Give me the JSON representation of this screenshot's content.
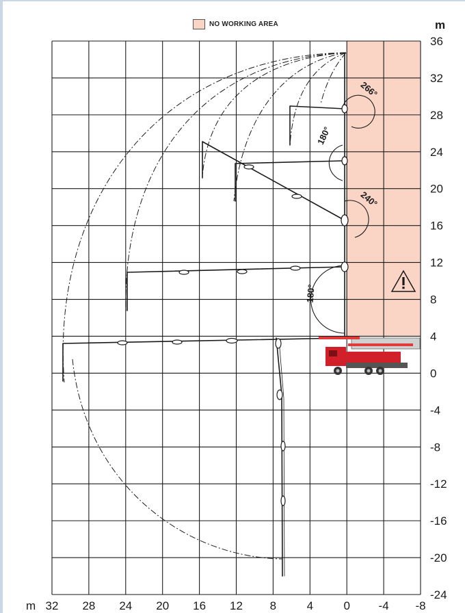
{
  "legend": {
    "label": "NO WORKING AREA",
    "color": "#fad5c6"
  },
  "axes": {
    "x_unit": "m",
    "y_unit": "m",
    "x_ticks": [
      32,
      28,
      24,
      20,
      16,
      12,
      8,
      4,
      0,
      -4,
      -8
    ],
    "x_tick_labels": [
      "32",
      "28",
      "24",
      "20",
      "16",
      "12",
      "8",
      "4",
      "0",
      "-4",
      "-8"
    ],
    "y_ticks": [
      36,
      32,
      28,
      24,
      20,
      16,
      12,
      8,
      4,
      0,
      -4,
      -8,
      -12,
      -16,
      -20,
      -24
    ],
    "y_tick_labels": [
      "36",
      "32",
      "28",
      "24",
      "20",
      "16",
      "12",
      "8",
      "4",
      "0",
      "-4",
      "-8",
      "-12",
      "-16",
      "-20",
      "-24"
    ],
    "x_range": [
      32,
      -8
    ],
    "y_range": [
      -24,
      36
    ]
  },
  "no_working_area": {
    "x_from": 0,
    "x_to": -8,
    "y_from": 4,
    "y_to": 36
  },
  "angle_labels": [
    {
      "text": "266°",
      "x": -2.2,
      "y": 30.5,
      "rotate": 40
    },
    {
      "text": "180°",
      "x": 2.2,
      "y": 25.6,
      "rotate": -65
    },
    {
      "text": "240°",
      "x": -2.2,
      "y": 18.6,
      "rotate": 40
    },
    {
      "text": "180°",
      "x": 3.6,
      "y": 8.6,
      "rotate": -85
    }
  ],
  "warning_icon": "warning-triangle-icon",
  "truck_color": "#d2202a"
}
